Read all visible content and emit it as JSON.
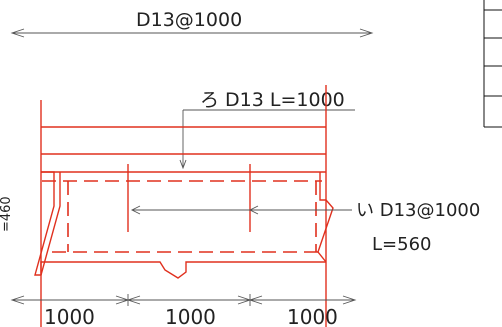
{
  "drawing": {
    "top_dimension": "D13@1000",
    "rebar_ro": "ろ D13 L=1000",
    "rebar_i_line1": "い D13@1000",
    "rebar_i_line2": "L=560",
    "left_dim": "=460",
    "bottom_dims": [
      "1000",
      "1000",
      "1000"
    ]
  },
  "colors": {
    "rebar_red": "#e0301e",
    "dimension_gray": "#555555"
  }
}
